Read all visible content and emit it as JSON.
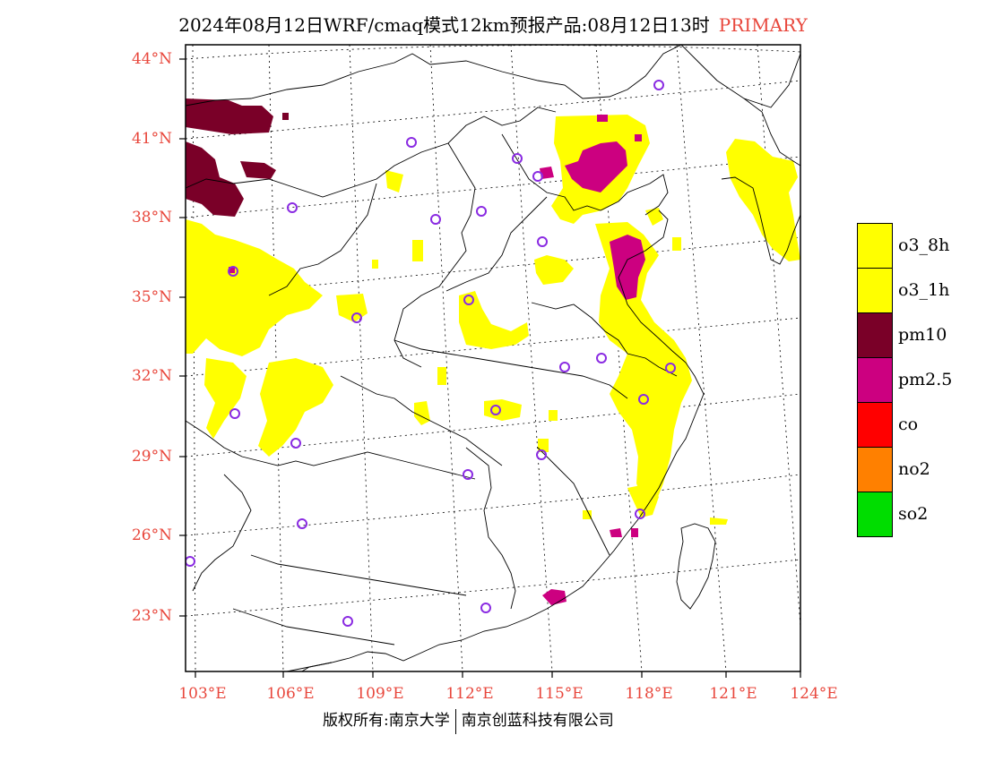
{
  "title": {
    "main": "2024年08月12日WRF/cmaq模式12km预报产品:08月12日13时",
    "tag": "PRIMARY"
  },
  "axes": {
    "lat_labels": [
      "44°N",
      "41°N",
      "38°N",
      "35°N",
      "32°N",
      "29°N",
      "26°N",
      "23°N"
    ],
    "lon_labels": [
      "103°E",
      "106°E",
      "109°E",
      "112°E",
      "115°E",
      "118°E",
      "121°E",
      "124°E"
    ]
  },
  "legend": [
    {
      "label": "o3_8h",
      "color": "#ffff00"
    },
    {
      "label": "o3_1h",
      "color": "#ffff00"
    },
    {
      "label": "pm10",
      "color": "#7a0028"
    },
    {
      "label": "pm2.5",
      "color": "#cc0080"
    },
    {
      "label": "co",
      "color": "#ff0000"
    },
    {
      "label": "no2",
      "color": "#ff8000"
    },
    {
      "label": "so2",
      "color": "#00dd00"
    }
  ],
  "footer": {
    "left": "版权所有:南京大学",
    "right": "南京创蓝科技有限公司"
  },
  "colors": {
    "axis_label": "#e8473c",
    "station": "#8a2be2"
  }
}
